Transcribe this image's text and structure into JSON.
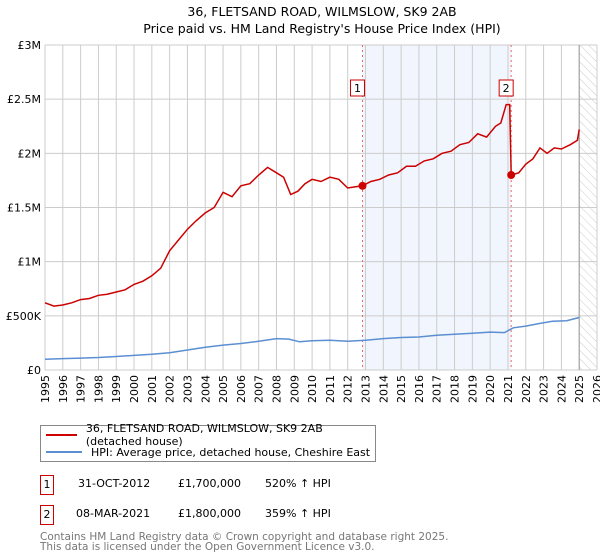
{
  "chart_data": {
    "type": "line",
    "title": "36, FLETSAND ROAD, WILMSLOW, SK9 2AB",
    "subtitle": "Price paid vs. HM Land Registry's House Price Index (HPI)",
    "xlim": [
      1995,
      2026
    ],
    "ylim": [
      0,
      3000000
    ],
    "x_ticks": [
      "1995",
      "1996",
      "1997",
      "1998",
      "1999",
      "2000",
      "2001",
      "2002",
      "2003",
      "2004",
      "2005",
      "2006",
      "2007",
      "2008",
      "2009",
      "2010",
      "2011",
      "2012",
      "2013",
      "2014",
      "2015",
      "2016",
      "2017",
      "2018",
      "2019",
      "2020",
      "2021",
      "2022",
      "2023",
      "2024",
      "2025",
      "2026"
    ],
    "y_ticks": [
      {
        "v": 0,
        "label": "£0"
      },
      {
        "v": 500000,
        "label": "£500K"
      },
      {
        "v": 1000000,
        "label": "£1M"
      },
      {
        "v": 1500000,
        "label": "£1.5M"
      },
      {
        "v": 2000000,
        "label": "£2M"
      },
      {
        "v": 2500000,
        "label": "£2.5M"
      },
      {
        "v": 3000000,
        "label": "£3M"
      }
    ],
    "grid": true,
    "shaded_period": [
      2012.83,
      2021.18
    ],
    "forecast_hatch_from": 2025.0,
    "series": [
      {
        "name": "36, FLETSAND ROAD, WILMSLOW, SK9 2AB (detached house)",
        "color": "#cc0000",
        "x": [
          1995,
          1995.5,
          1996,
          1996.5,
          1997,
          1997.5,
          1998,
          1998.5,
          1999,
          1999.5,
          2000,
          2000.5,
          2001,
          2001.5,
          2002,
          2002.5,
          2003,
          2003.5,
          2004,
          2004.5,
          2005,
          2005.5,
          2006,
          2006.5,
          2007,
          2007.5,
          2008,
          2008.4,
          2008.8,
          2009.2,
          2009.6,
          2010,
          2010.5,
          2011,
          2011.5,
          2012,
          2012.4,
          2012.83,
          2013.3,
          2013.8,
          2014.3,
          2014.8,
          2015.3,
          2015.8,
          2016.3,
          2016.8,
          2017.3,
          2017.8,
          2018.3,
          2018.8,
          2019.3,
          2019.8,
          2020.3,
          2020.6,
          2020.9,
          2021.1,
          2021.18,
          2021.6,
          2022,
          2022.4,
          2022.8,
          2023.2,
          2023.6,
          2024,
          2024.5,
          2024.9,
          2025.0
        ],
        "y": [
          620000,
          590000,
          600000,
          620000,
          650000,
          660000,
          690000,
          700000,
          720000,
          740000,
          790000,
          820000,
          870000,
          940000,
          1100000,
          1200000,
          1300000,
          1380000,
          1450000,
          1500000,
          1640000,
          1600000,
          1700000,
          1720000,
          1800000,
          1870000,
          1820000,
          1780000,
          1620000,
          1650000,
          1720000,
          1760000,
          1740000,
          1780000,
          1760000,
          1680000,
          1690000,
          1700000,
          1740000,
          1760000,
          1800000,
          1820000,
          1880000,
          1880000,
          1930000,
          1950000,
          2000000,
          2020000,
          2080000,
          2100000,
          2180000,
          2150000,
          2250000,
          2280000,
          2450000,
          2450000,
          1800000,
          1820000,
          1900000,
          1950000,
          2050000,
          2000000,
          2050000,
          2040000,
          2080000,
          2120000,
          2220000
        ]
      },
      {
        "name": "HPI: Average price, detached house, Cheshire East",
        "color": "#5b8fd1",
        "x": [
          1995,
          1996,
          1997,
          1998,
          1999,
          2000,
          2001,
          2002,
          2003,
          2004,
          2005,
          2006,
          2007,
          2008,
          2008.7,
          2009.3,
          2010,
          2011,
          2012,
          2013,
          2014,
          2015,
          2016,
          2017,
          2018,
          2019,
          2020,
          2020.8,
          2021.3,
          2022,
          2022.8,
          2023.5,
          2024.3,
          2025.0
        ],
        "y": [
          100000,
          105000,
          110000,
          115000,
          125000,
          135000,
          145000,
          160000,
          185000,
          210000,
          230000,
          245000,
          265000,
          290000,
          285000,
          260000,
          270000,
          275000,
          265000,
          275000,
          290000,
          300000,
          305000,
          320000,
          330000,
          340000,
          350000,
          345000,
          390000,
          405000,
          430000,
          450000,
          455000,
          485000
        ]
      }
    ],
    "markers": [
      {
        "label": "1",
        "x": 2012.83,
        "y": 1700000
      },
      {
        "label": "2",
        "x": 2021.18,
        "y": 1800000
      }
    ]
  },
  "transactions": [
    {
      "num": "1",
      "date": "31-OCT-2012",
      "price": "£1,700,000",
      "hpi": "520% ↑ HPI"
    },
    {
      "num": "2",
      "date": "08-MAR-2021",
      "price": "£1,800,000",
      "hpi": "359% ↑ HPI"
    }
  ],
  "footer": {
    "line1": "Contains HM Land Registry data © Crown copyright and database right 2025.",
    "line2": "This data is licensed under the Open Government Licence v3.0."
  }
}
